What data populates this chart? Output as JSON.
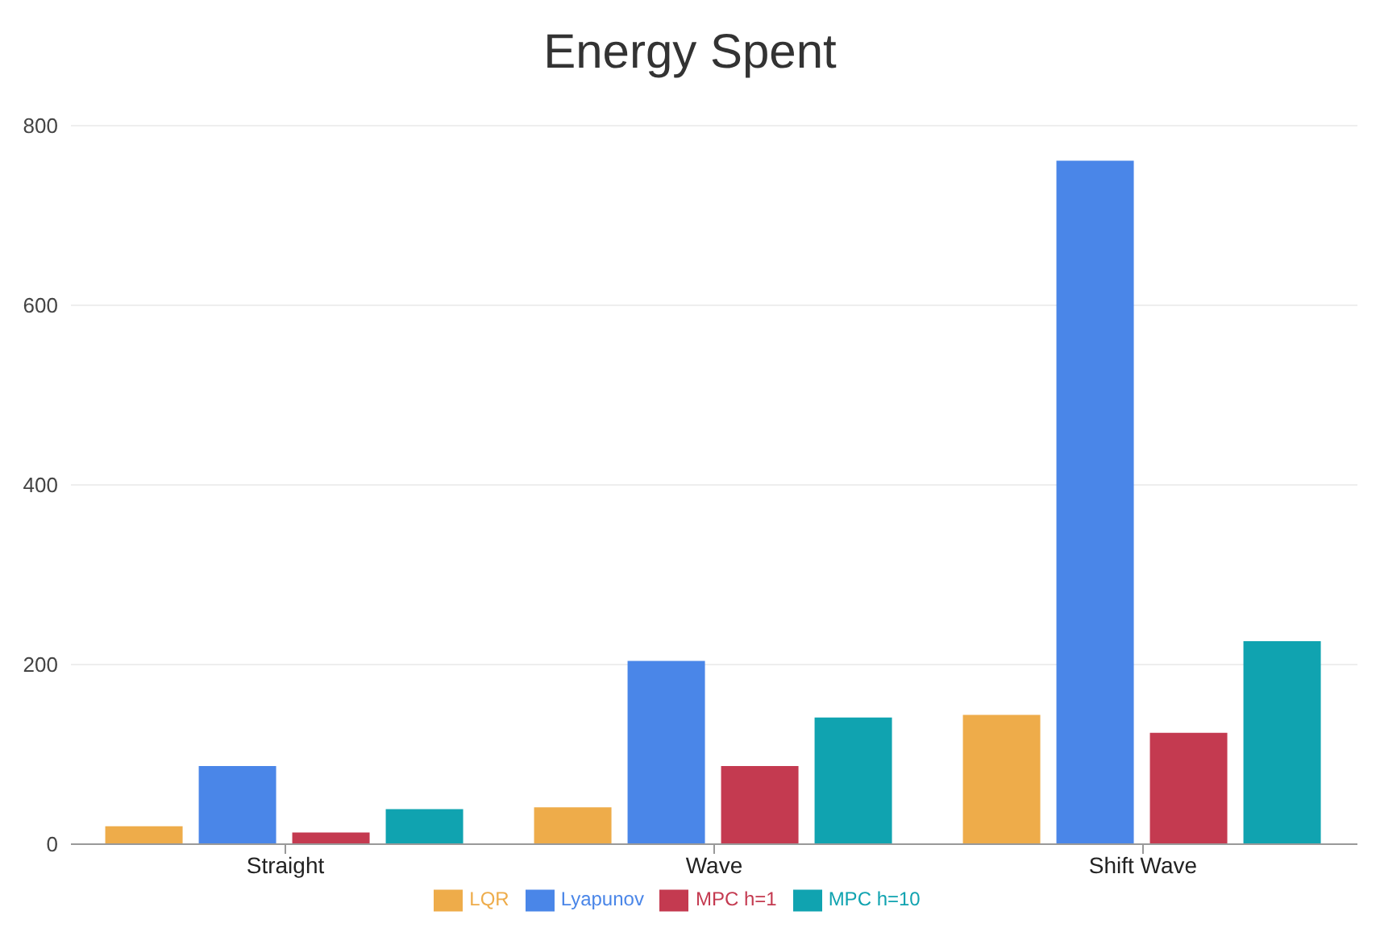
{
  "chart_data": {
    "type": "bar",
    "title": "Energy Spent",
    "categories": [
      "Straight",
      "Wave",
      "Shift Wave"
    ],
    "series": [
      {
        "name": "LQR",
        "color": "#eeac4a",
        "values": [
          20,
          41,
          144
        ]
      },
      {
        "name": "Lyapunov",
        "color": "#4a86e8",
        "values": [
          87,
          204,
          761
        ]
      },
      {
        "name": "MPC h=1",
        "color": "#c43a50",
        "values": [
          13,
          87,
          124
        ]
      },
      {
        "name": "MPC h=10",
        "color": "#10a3b0",
        "values": [
          39,
          141,
          226
        ]
      }
    ],
    "ylim": [
      0,
      800
    ],
    "yticks": [
      0,
      200,
      400,
      600,
      800
    ],
    "grid": "y",
    "legend": "bottom"
  }
}
